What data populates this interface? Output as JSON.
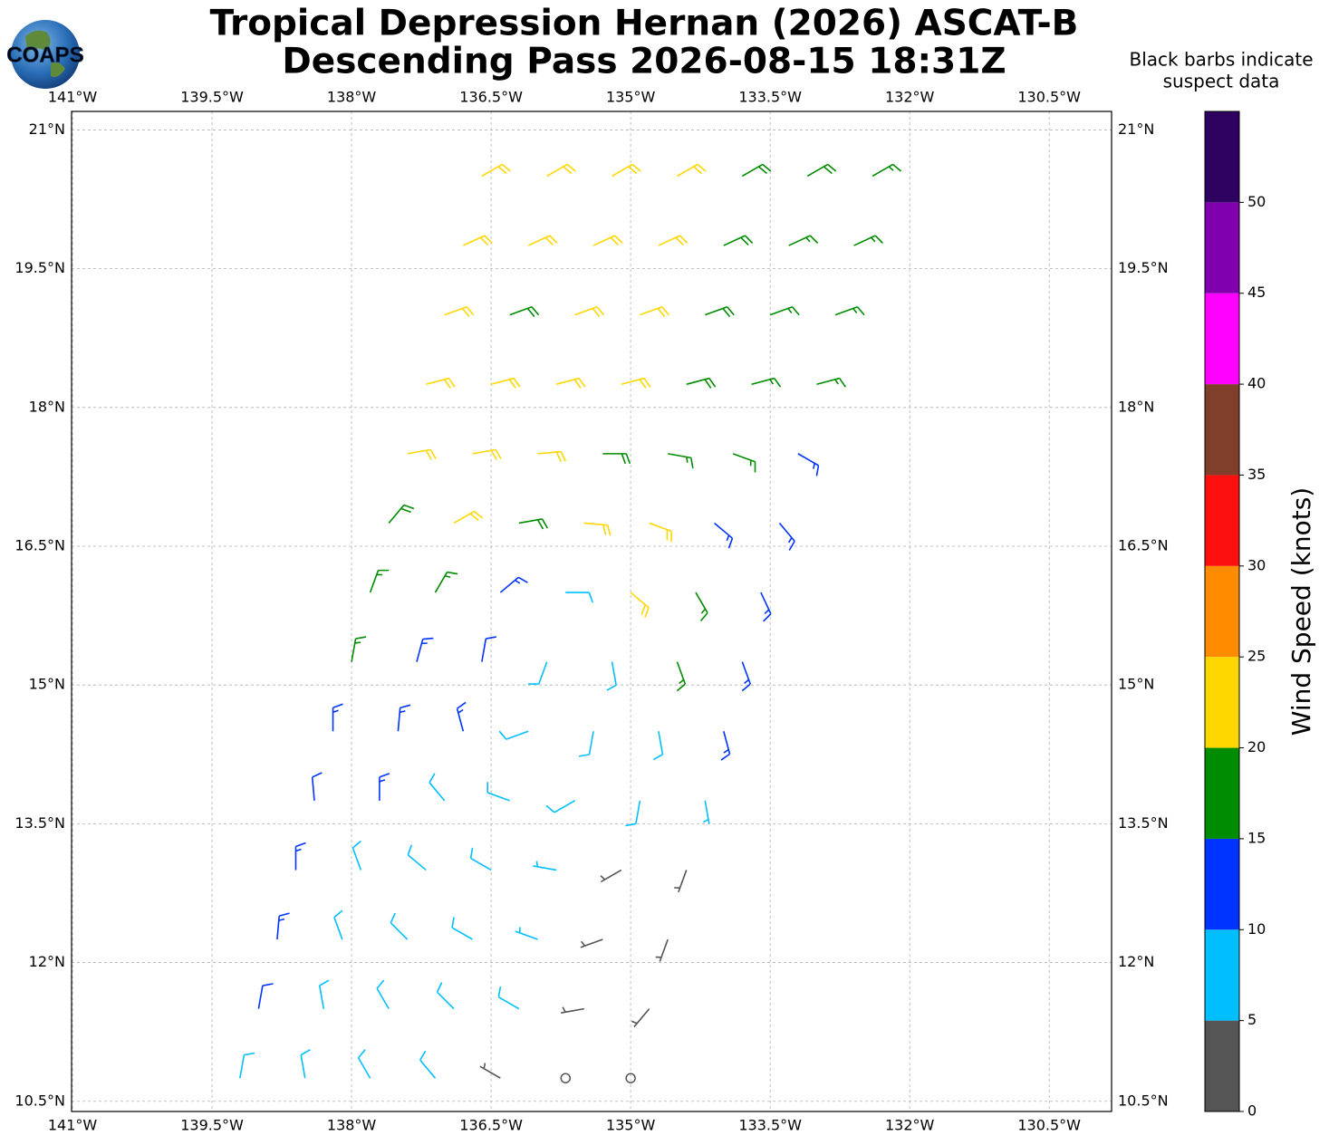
{
  "chart_data": {
    "type": "barbs",
    "title": "Tropical Depression Hernan (2026) ASCAT-B",
    "subtitle": "Descending Pass 2026-08-15 18:31Z",
    "logo": "COAPS",
    "annotation": [
      "Black barbs indicate",
      "suspect data"
    ],
    "colorbar_label": "Wind Speed (knots)",
    "xlim": [
      -141.01,
      -129.83
    ],
    "ylim": [
      10.39,
      21.2
    ],
    "xticks": [
      {
        "value": -141,
        "label": "141°W"
      },
      {
        "value": -139.5,
        "label": "139.5°W"
      },
      {
        "value": -138,
        "label": "138°W"
      },
      {
        "value": -136.5,
        "label": "136.5°W"
      },
      {
        "value": -135,
        "label": "135°W"
      },
      {
        "value": -133.5,
        "label": "133.5°W"
      },
      {
        "value": -132,
        "label": "132°W"
      },
      {
        "value": -130.5,
        "label": "130.5°W"
      }
    ],
    "yticks": [
      {
        "value": 10.5,
        "label": "10.5°N"
      },
      {
        "value": 12,
        "label": "12°N"
      },
      {
        "value": 13.5,
        "label": "13.5°N"
      },
      {
        "value": 15,
        "label": "15°N"
      },
      {
        "value": 16.5,
        "label": "16.5°N"
      },
      {
        "value": 18,
        "label": "18°N"
      },
      {
        "value": 19.5,
        "label": "19.5°N"
      },
      {
        "value": 21,
        "label": "21°N"
      }
    ],
    "grid": true,
    "colorbar": {
      "bounds": [
        0,
        5,
        10,
        15,
        20,
        25,
        30,
        35,
        40,
        45,
        50,
        55
      ],
      "colors": [
        "#555555",
        "#00bfff",
        "#0033ff",
        "#008c00",
        "#ffd700",
        "#ff8c00",
        "#ff1010",
        "#7f3f2a",
        "#ff00ff",
        "#8000b0",
        "#2e005f"
      ],
      "ticks": [
        0,
        5,
        10,
        15,
        20,
        25,
        30,
        35,
        40,
        45,
        50
      ]
    },
    "barbs": {
      "lon": [
        -139.2,
        -138.5,
        -137.8,
        -137.1,
        -136.4,
        -135.7,
        -135.0,
        -139.0,
        -138.3,
        -137.6,
        -136.9,
        -136.2,
        -135.5,
        -134.8,
        -138.8,
        -138.1,
        -137.4,
        -136.7,
        -136.0,
        -135.3,
        -134.6,
        -138.6,
        -137.9,
        -137.2,
        -136.5,
        -135.8,
        -135.1,
        -134.4,
        -138.4,
        -137.7,
        -137.0,
        -136.3,
        -135.6,
        -134.9,
        -134.2,
        -138.2,
        -137.5,
        -136.8,
        -136.1,
        -135.4,
        -134.7,
        -134.0,
        -138.0,
        -137.3,
        -136.6,
        -135.9,
        -135.2,
        -134.5,
        -133.8,
        -137.8,
        -137.1,
        -136.4,
        -135.7,
        -135.0,
        -134.3,
        -133.6,
        -137.6,
        -136.9,
        -136.2,
        -135.5,
        -134.8,
        -134.1,
        -133.4,
        -137.4,
        -136.7,
        -136.0,
        -135.3,
        -134.6,
        -133.9,
        -133.2,
        -137.2,
        -136.5,
        -135.8,
        -135.1,
        -134.4,
        -133.7,
        -133.0,
        -137.0,
        -136.3,
        -135.6,
        -134.9,
        -134.2,
        -133.5,
        -132.8,
        -136.8,
        -136.1,
        -135.4,
        -134.7,
        -134.0,
        -133.3,
        -132.6,
        -136.6,
        -135.9,
        -135.2,
        -134.5,
        -133.8,
        -133.1,
        -132.4
      ],
      "lat": [
        10.75,
        10.75,
        10.75,
        10.75,
        10.75,
        10.75,
        10.75,
        11.5,
        11.5,
        11.5,
        11.5,
        11.5,
        11.5,
        11.5,
        12.25,
        12.25,
        12.25,
        12.25,
        12.25,
        12.25,
        12.25,
        13,
        13,
        13,
        13,
        13,
        13,
        13,
        13.75,
        13.75,
        13.75,
        13.75,
        13.75,
        13.75,
        13.75,
        14.5,
        14.5,
        14.5,
        14.5,
        14.5,
        14.5,
        14.5,
        15.25,
        15.25,
        15.25,
        15.25,
        15.25,
        15.25,
        15.25,
        16,
        16,
        16,
        16,
        16,
        16,
        16,
        16.75,
        16.75,
        16.75,
        16.75,
        16.75,
        16.75,
        16.75,
        17.5,
        17.5,
        17.5,
        17.5,
        17.5,
        17.5,
        17.5,
        18.25,
        18.25,
        18.25,
        18.25,
        18.25,
        18.25,
        18.25,
        19,
        19,
        19,
        19,
        19,
        19,
        19,
        19.75,
        19.75,
        19.75,
        19.75,
        19.75,
        19.75,
        19.75,
        20.5,
        20.5,
        20.5,
        20.5,
        20.5,
        20.5,
        20.5
      ],
      "speed": [
        8,
        8,
        8,
        8,
        3,
        2,
        1,
        12,
        8,
        8,
        8,
        8,
        3,
        3,
        13,
        8,
        8,
        8,
        7,
        3,
        3,
        13,
        8,
        8,
        8,
        7,
        3,
        3,
        12,
        13,
        8,
        8,
        8,
        8,
        7,
        13,
        13,
        13,
        8,
        8,
        8,
        13,
        17,
        14,
        12,
        8,
        8,
        16,
        13,
        17,
        17,
        13,
        8,
        22,
        16,
        14,
        18,
        22,
        18,
        21,
        21,
        14,
        13,
        22,
        21,
        22,
        18,
        17,
        16,
        14,
        22,
        22,
        21,
        22,
        18,
        17,
        16,
        21,
        18,
        22,
        21,
        18,
        17,
        16,
        22,
        22,
        22,
        21,
        18,
        17,
        16,
        22,
        22,
        22,
        21,
        18,
        18,
        17
      ],
      "dir": [
        10,
        350,
        330,
        320,
        300,
        270,
        0,
        10,
        350,
        330,
        315,
        300,
        260,
        220,
        5,
        340,
        315,
        300,
        290,
        250,
        200,
        0,
        340,
        310,
        300,
        280,
        240,
        200,
        355,
        0,
        320,
        290,
        240,
        190,
        170,
        0,
        5,
        345,
        250,
        190,
        170,
        165,
        10,
        15,
        10,
        200,
        170,
        160,
        160,
        20,
        30,
        50,
        90,
        130,
        150,
        155,
        40,
        60,
        80,
        95,
        110,
        130,
        140,
        80,
        80,
        85,
        90,
        100,
        110,
        120,
        75,
        75,
        75,
        75,
        75,
        75,
        75,
        70,
        70,
        70,
        70,
        70,
        70,
        70,
        65,
        65,
        65,
        65,
        65,
        65,
        65,
        60,
        60,
        60,
        60,
        60,
        60,
        60
      ]
    }
  }
}
